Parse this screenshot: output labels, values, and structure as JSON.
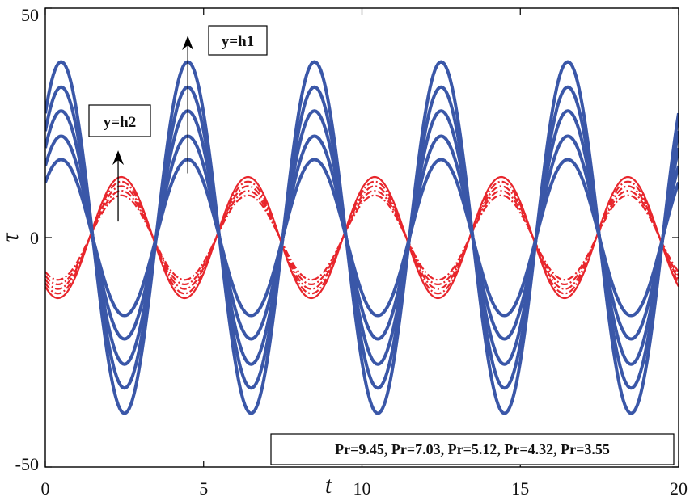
{
  "chart_data": {
    "type": "line",
    "title": "",
    "xlabel": "t",
    "ylabel": "τ",
    "xlim": [
      0,
      20
    ],
    "ylim": [
      -50,
      50
    ],
    "xticks": [
      0,
      5,
      10,
      15,
      20
    ],
    "yticks": [
      -50,
      0,
      50
    ],
    "xtick_labels": [
      "0",
      "5",
      "10",
      "15",
      "20"
    ],
    "ytick_labels": [
      "-50",
      "0",
      "50"
    ],
    "grid": false,
    "legend": {
      "placement": "bottom-right",
      "text": "Pr=9.45, Pr=7.03, Pr=5.12, Pr=4.32, Pr=3.55"
    },
    "annotations": [
      {
        "text": "y=h1",
        "arrow_from": [
          4.5,
          14
        ],
        "arrow_to": [
          4.5,
          44
        ]
      },
      {
        "text": "y=h2",
        "arrow_from": [
          2.3,
          3.5
        ],
        "arrow_to": [
          2.3,
          19
        ]
      }
    ],
    "curve_model": {
      "form": "A*cos(pi*(t - t0)/2)",
      "samples": 401
    },
    "series": [
      {
        "name": "y=h1, Pr=9.45",
        "group": "h1",
        "amplitude": 38.3,
        "t0": 0.5,
        "color": "#3a57a8",
        "style": "solid"
      },
      {
        "name": "y=h1, Pr=7.03",
        "group": "h1",
        "amplitude": 32.8,
        "t0": 0.5,
        "color": "#3a57a8",
        "style": "solid"
      },
      {
        "name": "y=h1, Pr=5.12",
        "group": "h1",
        "amplitude": 27.6,
        "t0": 0.5,
        "color": "#3a57a8",
        "style": "solid"
      },
      {
        "name": "y=h1, Pr=4.32",
        "group": "h1",
        "amplitude": 22.1,
        "t0": 0.5,
        "color": "#3a57a8",
        "style": "solid"
      },
      {
        "name": "y=h1, Pr=3.55",
        "group": "h1",
        "amplitude": 17.0,
        "t0": 0.5,
        "color": "#3a57a8",
        "style": "solid"
      },
      {
        "name": "y=h2, Pr=9.45",
        "group": "h2",
        "amplitude": 13.2,
        "t0": 2.4,
        "color": "#e8262c",
        "style": "solid"
      },
      {
        "name": "y=h2, Pr=7.03",
        "group": "h2",
        "amplitude": 12.2,
        "t0": 2.4,
        "color": "#e8262c",
        "style": "dashdot"
      },
      {
        "name": "y=h2, Pr=5.12",
        "group": "h2",
        "amplitude": 11.2,
        "t0": 2.4,
        "color": "#e8262c",
        "style": "dashdot"
      },
      {
        "name": "y=h2, Pr=4.32",
        "group": "h2",
        "amplitude": 10.2,
        "t0": 2.4,
        "color": "#e8262c",
        "style": "dashdot"
      },
      {
        "name": "y=h2, Pr=3.55",
        "group": "h2",
        "amplitude": 9.2,
        "t0": 2.4,
        "color": "#e8262c",
        "style": "dashdot"
      }
    ]
  }
}
